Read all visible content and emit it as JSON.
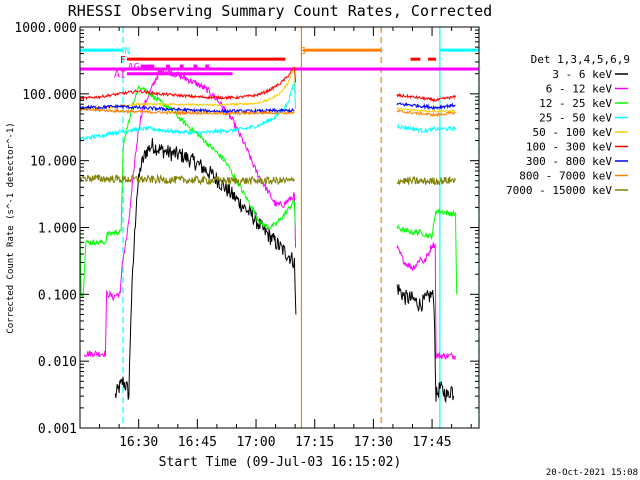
{
  "chart_data": {
    "type": "line",
    "title": "RHESSI Observing Summary Count Rates, Corrected",
    "xlabel": "Start Time (09-Jul-03 16:15:02)",
    "ylabel": "Corrected Count Rate (s^-1 detector^-1)",
    "y_scale": "log",
    "ylim": [
      0.001,
      1000
    ],
    "xlim_minutes_after_1615": [
      0,
      102
    ],
    "x_ticks": [
      {
        "label": "16:30",
        "minute": 15
      },
      {
        "label": "16:45",
        "minute": 30
      },
      {
        "label": "17:00",
        "minute": 45
      },
      {
        "label": "17:15",
        "minute": 60
      },
      {
        "label": "17:30",
        "minute": 75
      },
      {
        "label": "17:45",
        "minute": 90
      }
    ],
    "y_ticks": [
      {
        "label": "0.001",
        "value": 0.001
      },
      {
        "label": "0.010",
        "value": 0.01
      },
      {
        "label": "0.100",
        "value": 0.1
      },
      {
        "label": "1.000",
        "value": 1
      },
      {
        "label": "10.000",
        "value": 10
      },
      {
        "label": "100.000",
        "value": 100
      },
      {
        "label": "1000.000",
        "value": 1000
      }
    ],
    "grid": false,
    "legend_placement": "right",
    "legend_title": "Det 1,3,4,5,6,9",
    "series": [
      {
        "name": "3 - 6 keV",
        "color": "#000000",
        "noise": 0.12,
        "points": [
          [
            9,
            0.003
          ],
          [
            10,
            0.004
          ],
          [
            11,
            0.005
          ],
          [
            12,
            0.004
          ],
          [
            12.5,
            0.003
          ],
          [
            13,
            0.05
          ],
          [
            13.8,
            0.5
          ],
          [
            14.5,
            3
          ],
          [
            15.5,
            8
          ],
          [
            17,
            14
          ],
          [
            18.5,
            17
          ],
          [
            20,
            15
          ],
          [
            23,
            13
          ],
          [
            26,
            12
          ],
          [
            30,
            9
          ],
          [
            34,
            6
          ],
          [
            38,
            3.5
          ],
          [
            41,
            2.3
          ],
          [
            44,
            1.5
          ],
          [
            47,
            0.9
          ],
          [
            50,
            0.6
          ],
          [
            52,
            0.45
          ],
          [
            54,
            0.35
          ],
          [
            54.8,
            0.3
          ],
          [
            55.2,
            0.05
          ],
          null,
          [
            81,
            0.13
          ],
          [
            83,
            0.09
          ],
          [
            85,
            0.085
          ],
          [
            87,
            0.07
          ],
          [
            89,
            0.09
          ],
          [
            90,
            0.1
          ],
          [
            90.5,
            0.08
          ],
          [
            91,
            0.003
          ],
          [
            92,
            0.004
          ],
          [
            94,
            0.003
          ],
          [
            95,
            0.004
          ],
          [
            95.5,
            0.003
          ]
        ]
      },
      {
        "name": "6 - 12 keV",
        "color": "#ff00ff",
        "noise": 0.05,
        "points": [
          [
            1,
            0.013
          ],
          [
            5,
            0.013
          ],
          [
            6.5,
            0.013
          ],
          [
            6.8,
            0.1
          ],
          [
            7.5,
            0.1
          ],
          [
            8.5,
            0.09
          ],
          [
            9.5,
            0.1
          ],
          [
            10.3,
            0.1
          ],
          [
            10.8,
            0.3
          ],
          [
            11.5,
            0.5
          ],
          [
            12.3,
            1
          ],
          [
            13,
            2.5
          ],
          [
            14,
            10
          ],
          [
            15,
            30
          ],
          [
            16,
            60
          ],
          [
            18,
            110
          ],
          [
            20,
            200
          ],
          [
            22,
            220
          ],
          [
            24,
            200
          ],
          [
            27,
            170
          ],
          [
            30,
            140
          ],
          [
            33,
            110
          ],
          [
            36,
            70
          ],
          [
            39,
            40
          ],
          [
            42,
            18
          ],
          [
            45,
            7
          ],
          [
            48,
            3.5
          ],
          [
            50,
            2.2
          ],
          [
            52,
            2.2
          ],
          [
            53.5,
            2.6
          ],
          [
            54.8,
            3
          ],
          [
            55.1,
            0.5
          ],
          null,
          [
            81,
            0.5
          ],
          [
            83,
            0.3
          ],
          [
            85,
            0.25
          ],
          [
            86,
            0.28
          ],
          [
            87,
            0.35
          ],
          [
            88,
            0.3
          ],
          [
            89,
            0.4
          ],
          [
            90,
            0.55
          ],
          [
            90.8,
            0.55
          ],
          [
            91,
            0.012
          ],
          [
            95,
            0.012
          ],
          [
            96,
            0.012
          ]
        ]
      },
      {
        "name": "12 - 25 keV",
        "color": "#00ff00",
        "noise": 0.04,
        "points": [
          [
            0,
            1
          ],
          [
            0.3,
            0.1
          ],
          [
            0.8,
            0.1
          ],
          [
            1.5,
            0.6
          ],
          [
            5,
            0.6
          ],
          [
            6.5,
            0.6
          ],
          [
            7,
            0.8
          ],
          [
            9,
            0.85
          ],
          [
            10.5,
            0.85
          ],
          [
            11,
            15
          ],
          [
            12,
            30
          ],
          [
            13,
            50
          ],
          [
            14,
            90
          ],
          [
            15,
            120
          ],
          [
            16,
            130
          ],
          [
            17,
            110
          ],
          [
            20,
            80
          ],
          [
            23,
            60
          ],
          [
            26,
            40
          ],
          [
            30,
            25
          ],
          [
            34,
            15
          ],
          [
            37,
            10
          ],
          [
            40,
            5
          ],
          [
            43,
            2.5
          ],
          [
            46,
            1.2
          ],
          [
            48,
            1
          ],
          [
            50,
            1.1
          ],
          [
            52,
            1.5
          ],
          [
            54.8,
            2.5
          ],
          [
            55.1,
            0.8
          ],
          null,
          [
            81,
            1
          ],
          [
            83,
            0.9
          ],
          [
            85,
            0.85
          ],
          [
            87,
            0.85
          ],
          [
            89,
            0.75
          ],
          [
            90,
            0.75
          ],
          [
            91,
            1.8
          ],
          [
            95,
            1.6
          ],
          [
            96,
            1.6
          ],
          [
            96.3,
            0.1
          ]
        ]
      },
      {
        "name": "25 - 50 keV",
        "color": "#00ffff",
        "noise": 0.03,
        "points": [
          [
            0,
            21
          ],
          [
            2,
            22
          ],
          [
            4,
            23
          ],
          [
            6,
            24
          ],
          [
            8,
            26
          ],
          [
            10,
            27
          ],
          [
            12,
            28
          ],
          [
            14,
            29
          ],
          [
            16,
            30
          ],
          [
            18,
            30
          ],
          [
            22,
            28
          ],
          [
            26,
            27
          ],
          [
            30,
            26
          ],
          [
            34,
            27
          ],
          [
            38,
            28
          ],
          [
            42,
            30
          ],
          [
            46,
            34
          ],
          [
            50,
            45
          ],
          [
            53,
            70
          ],
          [
            54.8,
            150
          ],
          [
            55.1,
            60
          ],
          null,
          [
            81,
            33
          ],
          [
            85,
            30
          ],
          [
            88,
            28
          ],
          [
            91,
            30
          ],
          [
            95,
            30
          ],
          [
            96,
            31
          ]
        ]
      },
      {
        "name": "50 - 100 keV",
        "color": "#ffcc00",
        "noise": 0.015,
        "points": [
          [
            0,
            60
          ],
          [
            5,
            62
          ],
          [
            10,
            65
          ],
          [
            15,
            70
          ],
          [
            20,
            70
          ],
          [
            25,
            70
          ],
          [
            30,
            68
          ],
          [
            35,
            68
          ],
          [
            40,
            70
          ],
          [
            45,
            72
          ],
          [
            48,
            80
          ],
          [
            51,
            100
          ],
          [
            53,
            140
          ],
          [
            54.8,
            250
          ],
          [
            55.1,
            100
          ],
          null,
          [
            81,
            60
          ],
          [
            85,
            57
          ],
          [
            90,
            55
          ],
          [
            95,
            55
          ],
          [
            96,
            56
          ]
        ]
      },
      {
        "name": "100 - 300 keV",
        "color": "#ff0000",
        "noise": 0.02,
        "points": [
          [
            0,
            85
          ],
          [
            5,
            90
          ],
          [
            10,
            100
          ],
          [
            15,
            110
          ],
          [
            20,
            100
          ],
          [
            25,
            95
          ],
          [
            30,
            90
          ],
          [
            35,
            88
          ],
          [
            40,
            88
          ],
          [
            45,
            95
          ],
          [
            48,
            110
          ],
          [
            51,
            140
          ],
          [
            53,
            180
          ],
          [
            54.8,
            250
          ],
          [
            55.1,
            150
          ],
          null,
          [
            81,
            95
          ],
          [
            85,
            90
          ],
          [
            88,
            85
          ],
          [
            91,
            80
          ],
          [
            93,
            85
          ],
          [
            96,
            90
          ]
        ]
      },
      {
        "name": "300 - 800 keV",
        "color": "#0000ff",
        "noise": 0.025,
        "points": [
          [
            0,
            62
          ],
          [
            5,
            63
          ],
          [
            10,
            65
          ],
          [
            15,
            62
          ],
          [
            20,
            60
          ],
          [
            25,
            58
          ],
          [
            30,
            56
          ],
          [
            35,
            55
          ],
          [
            40,
            55
          ],
          [
            45,
            55
          ],
          [
            50,
            56
          ],
          [
            54.8,
            56
          ],
          null,
          [
            81,
            70
          ],
          [
            85,
            68
          ],
          [
            88,
            65
          ],
          [
            91,
            62
          ],
          [
            93,
            65
          ],
          [
            96,
            68
          ]
        ]
      },
      {
        "name": "800 - 7000 keV",
        "color": "#ff8000",
        "noise": 0.02,
        "points": [
          [
            0,
            58
          ],
          [
            5,
            57
          ],
          [
            10,
            55
          ],
          [
            15,
            54
          ],
          [
            20,
            53
          ],
          [
            25,
            52
          ],
          [
            30,
            52
          ],
          [
            35,
            51
          ],
          [
            40,
            51
          ],
          [
            45,
            52
          ],
          [
            50,
            52
          ],
          [
            54.8,
            52
          ],
          null,
          [
            81,
            55
          ],
          [
            85,
            52
          ],
          [
            88,
            50
          ],
          [
            91,
            48
          ],
          [
            93,
            50
          ],
          [
            96,
            52
          ]
        ]
      },
      {
        "name": "7000 - 15000 keV",
        "color": "#808000",
        "noise": 0.06,
        "points": [
          [
            0,
            5.5
          ],
          [
            10,
            5.3
          ],
          [
            20,
            5.2
          ],
          [
            30,
            5.1
          ],
          [
            40,
            5.0
          ],
          [
            50,
            5.0
          ],
          [
            54.8,
            5.0
          ],
          null,
          [
            81,
            5.0
          ],
          [
            88,
            4.9
          ],
          [
            96,
            5.1
          ]
        ]
      }
    ],
    "annotations": {
      "flags": [
        {
          "label": "N",
          "color": "#00ffff",
          "segments": [
            [
              0,
              10.8
            ],
            [
              92,
              102
            ]
          ],
          "value": 450
        },
        {
          "label": "F",
          "color": "#ff0000",
          "segments": [
            [
              12,
              52.5
            ]
          ],
          "value": 330
        },
        {
          "label": "S",
          "color": "#ff8000",
          "segments": [
            [
              57,
              77
            ]
          ],
          "value": 450
        },
        {
          "label": "",
          "color": "#ff0000",
          "segments": [
            [
              84.5,
              87
            ],
            [
              89,
              91
            ]
          ],
          "value": 330
        },
        {
          "label": "AG",
          "color": "#ff00ff",
          "segments": [
            [
              15.5,
              19
            ],
            [
              22,
              23
            ],
            [
              25.5,
              26.5
            ],
            [
              29,
              30
            ],
            [
              32,
              33
            ]
          ],
          "value": 260
        },
        {
          "label": "AI",
          "color": "#ff00ff",
          "segments": [
            [
              12,
              39
            ]
          ],
          "value": 200
        },
        {
          "label": "",
          "color": "#ff00ff",
          "segments": [
            [
              0,
              102
            ]
          ],
          "value": 235
        }
      ],
      "vlines": [
        {
          "minute": 11,
          "color": "#00ffff",
          "dashed": true
        },
        {
          "minute": 92,
          "color": "#00ffff",
          "dashed": false
        },
        {
          "minute": 102,
          "color": "#00ffff",
          "dashed": true
        },
        {
          "minute": 56.6,
          "color": "#ff8000",
          "dashed": false
        },
        {
          "minute": 77,
          "color": "#ff8000",
          "dashed": true
        }
      ]
    },
    "timestamp": "20-Oct-2021 15:08"
  }
}
